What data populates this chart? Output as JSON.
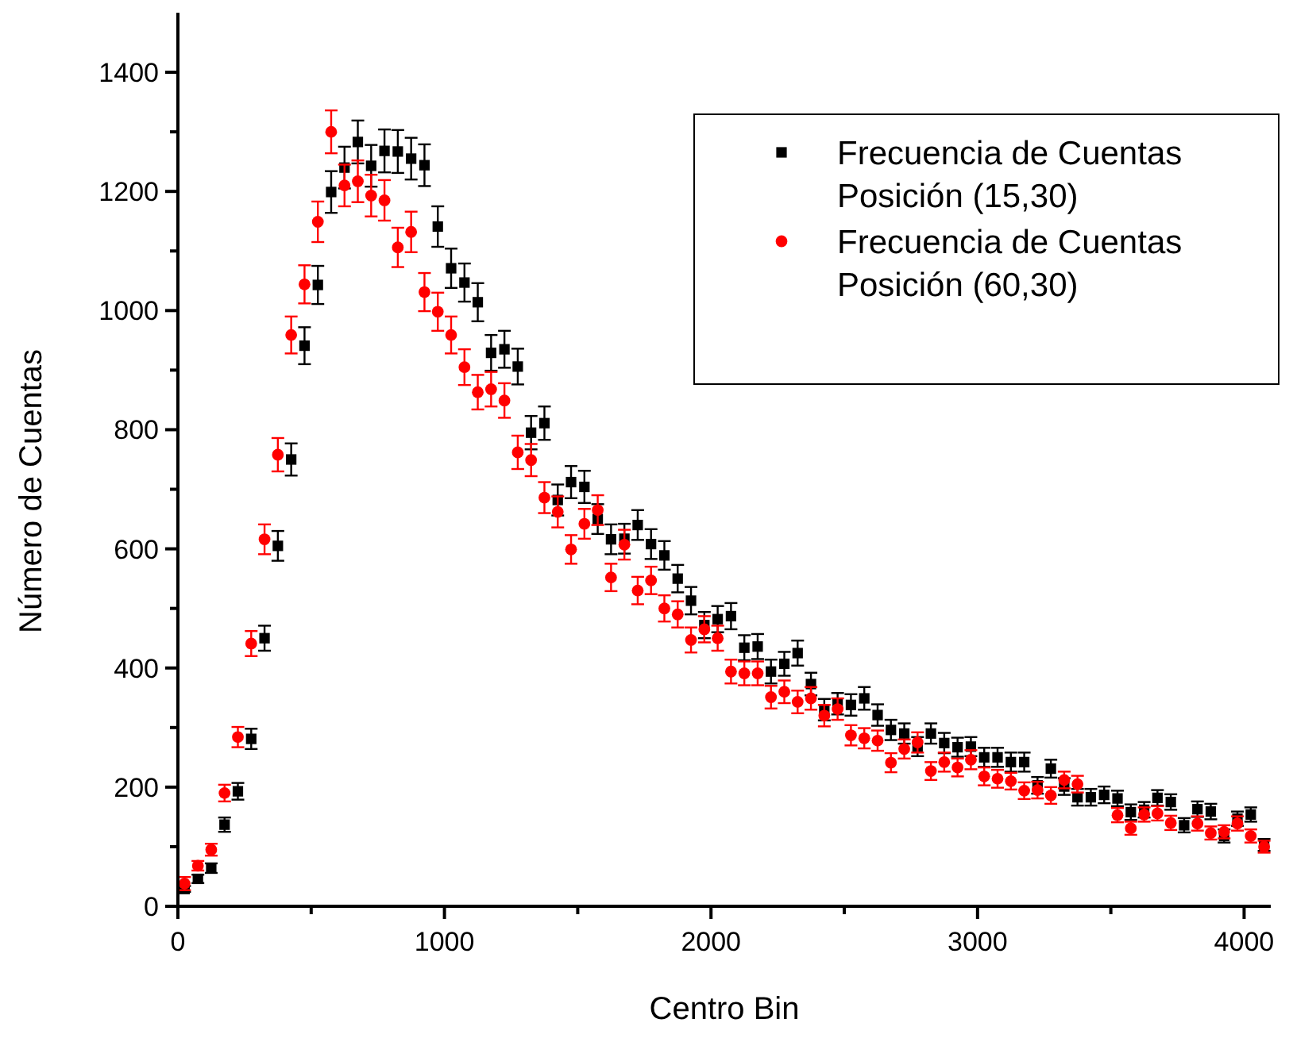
{
  "chart_data": {
    "type": "scatter",
    "xlabel": "Centro Bin",
    "ylabel": "Número de Cuentas",
    "xlim": [
      0,
      4100
    ],
    "ylim": [
      0,
      1500
    ],
    "xticks": [
      0,
      {
        "value": 500,
        "label": null
      },
      1000,
      {
        "value": 1500,
        "label": null
      },
      2000,
      {
        "value": 2500,
        "label": null
      },
      3000,
      {
        "value": 3500,
        "label": null
      },
      4000
    ],
    "yticks": [
      0,
      {
        "value": 100,
        "label": null
      },
      200,
      {
        "value": 300,
        "label": null
      },
      400,
      {
        "value": 500,
        "label": null
      },
      600,
      {
        "value": 700,
        "label": null
      },
      800,
      {
        "value": 900,
        "label": null
      },
      1000,
      {
        "value": 1100,
        "label": null
      },
      1200,
      {
        "value": 1300,
        "label": null
      },
      1400
    ],
    "grid": false,
    "legend": "top right",
    "x": [
      25,
      75,
      125,
      175,
      225,
      275,
      325,
      375,
      425,
      475,
      525,
      575,
      625,
      675,
      725,
      775,
      825,
      875,
      925,
      975,
      1025,
      1075,
      1125,
      1175,
      1225,
      1275,
      1325,
      1375,
      1425,
      1475,
      1525,
      1575,
      1625,
      1675,
      1725,
      1775,
      1825,
      1875,
      1925,
      1975,
      2025,
      2075,
      2125,
      2175,
      2225,
      2275,
      2325,
      2375,
      2425,
      2475,
      2525,
      2575,
      2625,
      2675,
      2725,
      2775,
      2825,
      2875,
      2925,
      2975,
      3025,
      3075,
      3125,
      3175,
      3225,
      3275,
      3325,
      3375,
      3425,
      3475,
      3525,
      3575,
      3625,
      3675,
      3725,
      3775,
      3825,
      3875,
      3925,
      3975,
      4025,
      4075
    ],
    "series": [
      {
        "name": "Frecuencia de Cuentas\nPosición (15,30)",
        "color": "#000000",
        "marker": "square",
        "values": [
          29,
          46,
          64,
          137,
          193,
          281,
          450,
          605,
          750,
          941,
          1043,
          1199,
          1240,
          1283,
          1243,
          1268,
          1267,
          1255,
          1244,
          1141,
          1071,
          1047,
          1014,
          929,
          935,
          906,
          795,
          811,
          682,
          712,
          704,
          650,
          616,
          617,
          640,
          608,
          589,
          550,
          513,
          472,
          482,
          487,
          434,
          436,
          394,
          407,
          425,
          373,
          330,
          340,
          338,
          349,
          321,
          296,
          290,
          268,
          290,
          274,
          267,
          268,
          250,
          250,
          242,
          242,
          203,
          231,
          201,
          183,
          183,
          187,
          181,
          158,
          162,
          182,
          175,
          136,
          163,
          159,
          118,
          147,
          154,
          103
        ],
        "errors": [
          5,
          7,
          8,
          12,
          14,
          17,
          21,
          25,
          27,
          31,
          32,
          35,
          35,
          36,
          35,
          36,
          36,
          35,
          35,
          34,
          33,
          32,
          32,
          30,
          31,
          30,
          28,
          28,
          26,
          27,
          27,
          25,
          25,
          25,
          25,
          25,
          24,
          23,
          23,
          22,
          22,
          22,
          21,
          21,
          20,
          20,
          21,
          19,
          18,
          18,
          18,
          19,
          18,
          17,
          17,
          16,
          17,
          17,
          16,
          16,
          16,
          16,
          16,
          16,
          14,
          15,
          14,
          14,
          14,
          14,
          13,
          13,
          13,
          13,
          13,
          12,
          13,
          13,
          11,
          12,
          12,
          10
        ]
      },
      {
        "name": "Frecuencia de Cuentas\nPosición (60,30)",
        "color": "#ff0000",
        "marker": "circle",
        "values": [
          38,
          68,
          95,
          190,
          284,
          441,
          616,
          758,
          959,
          1044,
          1149,
          1300,
          1210,
          1217,
          1193,
          1185,
          1106,
          1132,
          1031,
          998,
          959,
          905,
          863,
          868,
          849,
          762,
          749,
          686,
          662,
          599,
          642,
          665,
          552,
          607,
          530,
          547,
          500,
          490,
          447,
          465,
          450,
          394,
          391,
          391,
          351,
          360,
          343,
          349,
          320,
          331,
          287,
          282,
          278,
          241,
          264,
          275,
          227,
          242,
          233,
          246,
          218,
          214,
          210,
          194,
          195,
          186,
          212,
          205,
          null,
          null,
          153,
          131,
          154,
          156,
          140,
          null,
          139,
          123,
          125,
          139,
          118,
          100
        ],
        "errors": [
          11,
          8,
          10,
          14,
          17,
          21,
          25,
          28,
          31,
          32,
          34,
          36,
          35,
          35,
          35,
          34,
          33,
          34,
          32,
          32,
          31,
          30,
          29,
          29,
          29,
          28,
          27,
          26,
          26,
          24,
          25,
          25,
          23,
          25,
          23,
          23,
          22,
          22,
          21,
          22,
          21,
          20,
          20,
          20,
          19,
          19,
          19,
          19,
          18,
          18,
          17,
          17,
          17,
          16,
          16,
          17,
          15,
          16,
          15,
          16,
          15,
          15,
          14,
          14,
          14,
          14,
          14,
          14,
          null,
          null,
          12,
          11,
          12,
          12,
          12,
          null,
          12,
          11,
          11,
          12,
          11,
          10
        ]
      }
    ]
  }
}
